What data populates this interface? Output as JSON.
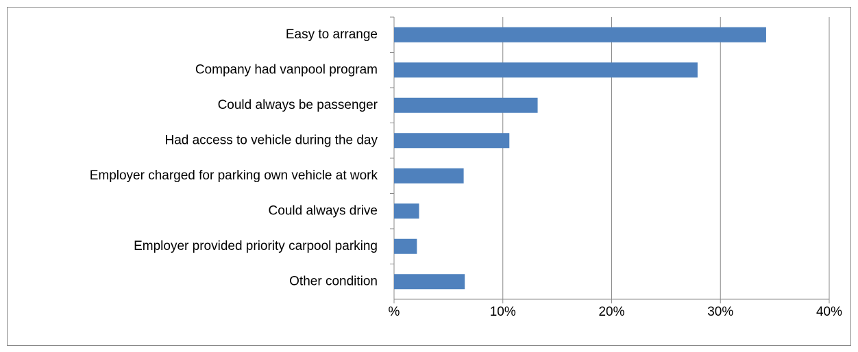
{
  "chart_data": {
    "type": "bar",
    "orientation": "horizontal",
    "categories": [
      "Easy to arrange",
      "Company had vanpool program",
      "Could always be passenger",
      "Had access to vehicle during the day",
      "Employer charged for parking own vehicle at work",
      "Could always drive",
      "Employer provided priority carpool parking",
      "Other condition"
    ],
    "values": [
      34.2,
      27.9,
      13.2,
      10.6,
      6.4,
      2.3,
      2.1,
      6.5
    ],
    "color": "#4f81bd",
    "xlim": [
      0,
      40
    ],
    "xticks": [
      {
        "value": 0,
        "label": "%"
      },
      {
        "value": 10,
        "label": "10%"
      },
      {
        "value": 20,
        "label": "20%"
      },
      {
        "value": 30,
        "label": "30%"
      },
      {
        "value": 40,
        "label": "40%"
      }
    ],
    "grid": true
  }
}
